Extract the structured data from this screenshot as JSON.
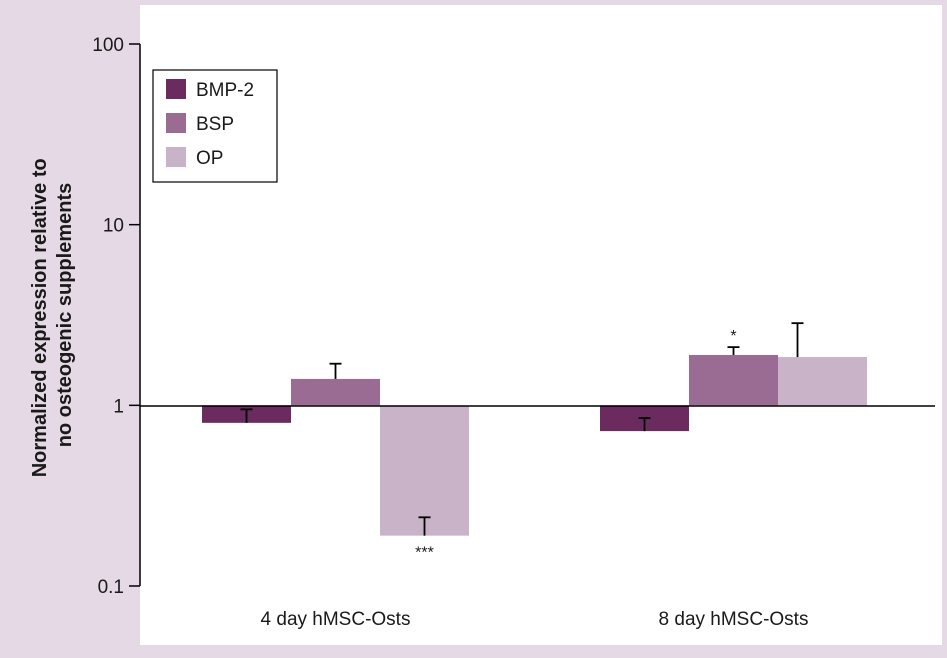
{
  "chart_data": {
    "type": "bar",
    "scale": "log",
    "ylabel_line1": "Normalized expression relative to",
    "ylabel_line2": "no osteogenic supplements",
    "xlabel": "",
    "ylim": [
      0.1,
      100
    ],
    "y_ticks": [
      {
        "value": 0.1,
        "label": "0.1"
      },
      {
        "value": 1,
        "label": "1"
      },
      {
        "value": 10,
        "label": "10"
      },
      {
        "value": 100,
        "label": "100"
      }
    ],
    "categories": [
      "4 day hMSC-Osts",
      "8 day hMSC-Osts"
    ],
    "series": [
      {
        "name": "BMP-2",
        "color": "#6b2b5e",
        "values": [
          0.8,
          0.72
        ],
        "errors": [
          0.95,
          0.85
        ],
        "significance": [
          "",
          ""
        ]
      },
      {
        "name": "BSP",
        "color": "#9b6c93",
        "values": [
          1.4,
          1.9
        ],
        "errors": [
          1.7,
          2.1
        ],
        "significance": [
          "",
          "*"
        ]
      },
      {
        "name": "OP",
        "color": "#c9b3c8",
        "values": [
          0.19,
          1.85
        ],
        "errors": [
          0.24,
          2.85
        ],
        "significance": [
          "***",
          ""
        ]
      }
    ],
    "legend_position": "top-left",
    "grid": false,
    "background": "#e6d9e6",
    "plot_background": "#ffffff"
  }
}
